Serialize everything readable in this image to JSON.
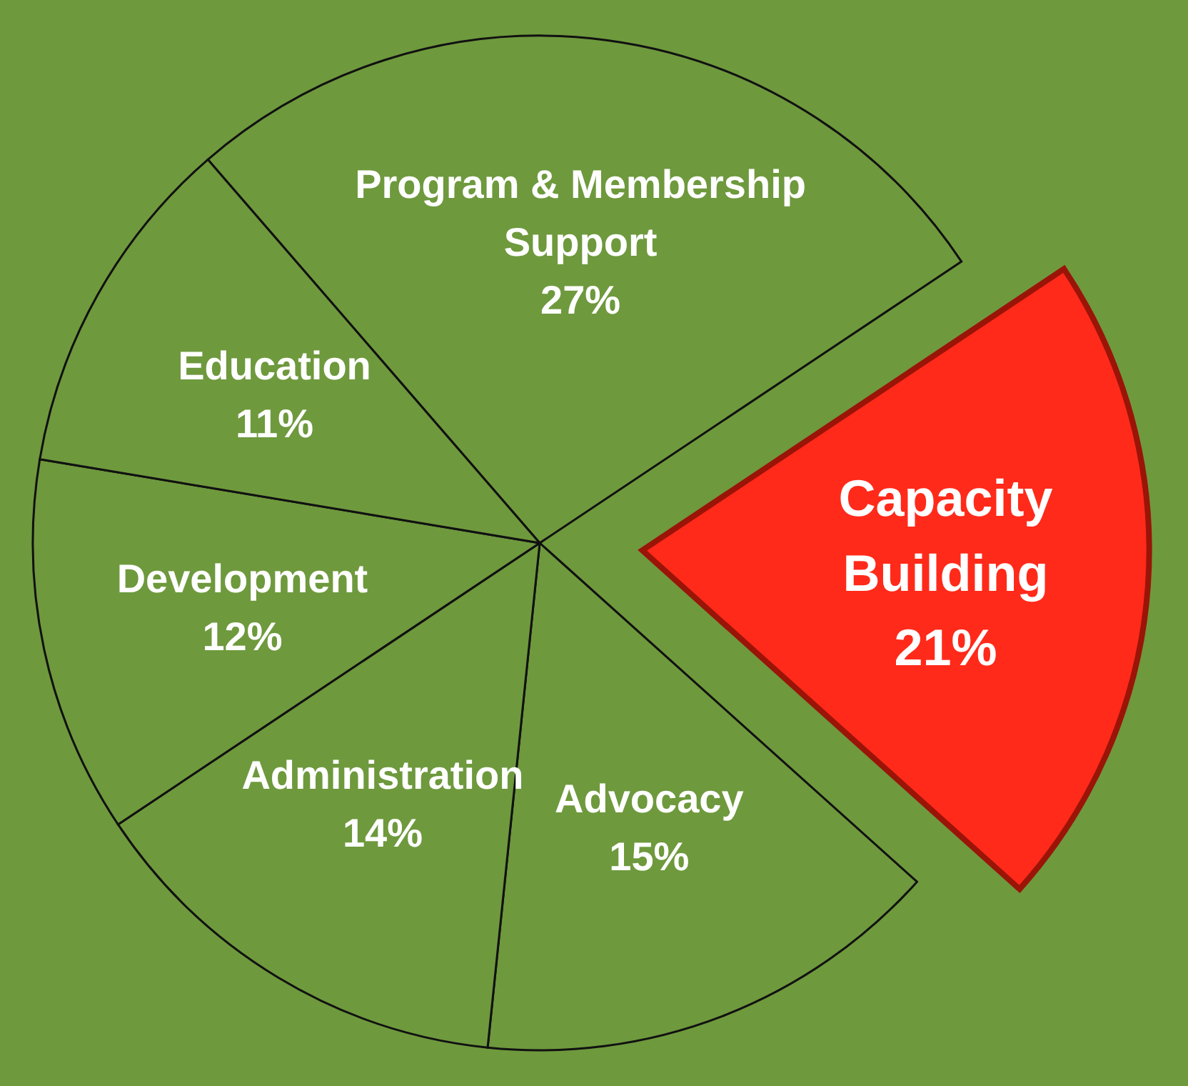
{
  "chart_data": {
    "type": "pie",
    "categories": [
      "Program & Membership Support",
      "Capacity Building",
      "Advocacy",
      "Administration",
      "Development",
      "Education"
    ],
    "values": [
      27,
      21,
      15,
      14,
      12,
      11
    ],
    "value_labels": [
      "27%",
      "21%",
      "15%",
      "14%",
      "12%",
      "11%"
    ],
    "colors": [
      "#6e993d",
      "#ff2a1a",
      "#6e993d",
      "#6e993d",
      "#6e993d",
      "#6e993d"
    ]
  }
}
